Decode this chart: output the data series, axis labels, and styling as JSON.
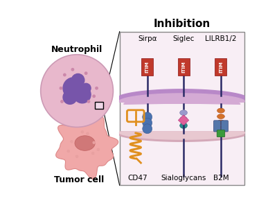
{
  "title": "Inhibition",
  "title_fontsize": 11,
  "title_fontweight": "bold",
  "bg_color": "#ffffff",
  "panel_bg": "#f8eef5",
  "neutrophil_label": "Neutrophil",
  "tumor_label": "Tumor cell",
  "receptor_labels": [
    "Sirpα",
    "Siglec",
    "LILRB1/2"
  ],
  "ligand_labels": [
    "CD47",
    "Sialoglycans",
    "B2M"
  ],
  "itim_color": "#c0392b",
  "itim_text": "ITIM",
  "sirpa_blue": "#4a72b0",
  "siglec_lavender": "#9999cc",
  "siglec_teal": "#2a8a8a",
  "lilrb_orange": "#d4722a",
  "cd47_orange": "#e09020",
  "diamond_pink": "#e0609a",
  "b2m_blue": "#5577aa",
  "b2m_green": "#3a9a3a",
  "stem_color": "#2a2a66",
  "neutrophil_body": "#e8b8cc",
  "neutrophil_edge": "#cc9ab5",
  "neutrophil_nucleus": "#7755aa",
  "neutrophil_dots": "#cc88aa",
  "tumor_body": "#f0a8a8",
  "tumor_edge": "#dd8888",
  "tumor_inner": "#d07878",
  "tumor_dots": "#e89898",
  "membrane_upper_outer": "#b888c8",
  "membrane_upper_inner": "#d4aad4",
  "membrane_lower_outer": "#d4a8b8",
  "membrane_lower_inner": "#e8c8d0"
}
